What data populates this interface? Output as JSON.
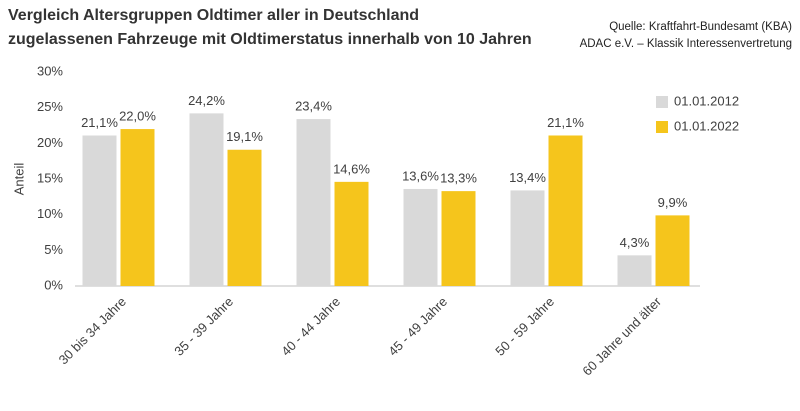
{
  "chart_data": {
    "type": "bar",
    "title": [
      "Vergleich Altersgruppen Oldtimer aller in Deutschland",
      "zugelassenen Fahrzeuge mit Oldtimerstatus innerhalb von 10 Jahren"
    ],
    "source": [
      "Quelle: Kraftfahrt-Bundesamt (KBA)",
      "ADAC e.V. – Klassik Interessenvertretung"
    ],
    "y_label": "Anteil",
    "categories": [
      "30 bis 34 Jahre",
      "35 - 39 Jahre",
      "40 - 44 Jahre",
      "45 - 49 Jahre",
      "50 - 59 Jahre",
      "60 Jahre und älter"
    ],
    "series": [
      {
        "name": "01.01.2012",
        "color": "#d9d9d9",
        "values": [
          21.1,
          24.2,
          23.4,
          13.6,
          13.4,
          4.3
        ],
        "value_labels": [
          "21,1%",
          "24,2%",
          "23,4%",
          "13,6%",
          "13,4%",
          "4,3%"
        ]
      },
      {
        "name": "01.01.2022",
        "color": "#f5c51c",
        "values": [
          22.0,
          19.1,
          14.6,
          13.3,
          21.1,
          9.9
        ],
        "value_labels": [
          "22,0%",
          "19,1%",
          "14,6%",
          "13,3%",
          "21,1%",
          "9,9%"
        ]
      }
    ],
    "ylim": [
      0,
      30
    ],
    "yticks": [
      {
        "value": 0,
        "label": "0%"
      },
      {
        "value": 5,
        "label": "5%"
      },
      {
        "value": 10,
        "label": "10%"
      },
      {
        "value": 15,
        "label": "15%"
      },
      {
        "value": 20,
        "label": "20%"
      },
      {
        "value": 25,
        "label": "25%"
      },
      {
        "value": 30,
        "label": "30%"
      }
    ],
    "grid": false,
    "legend": "right"
  }
}
